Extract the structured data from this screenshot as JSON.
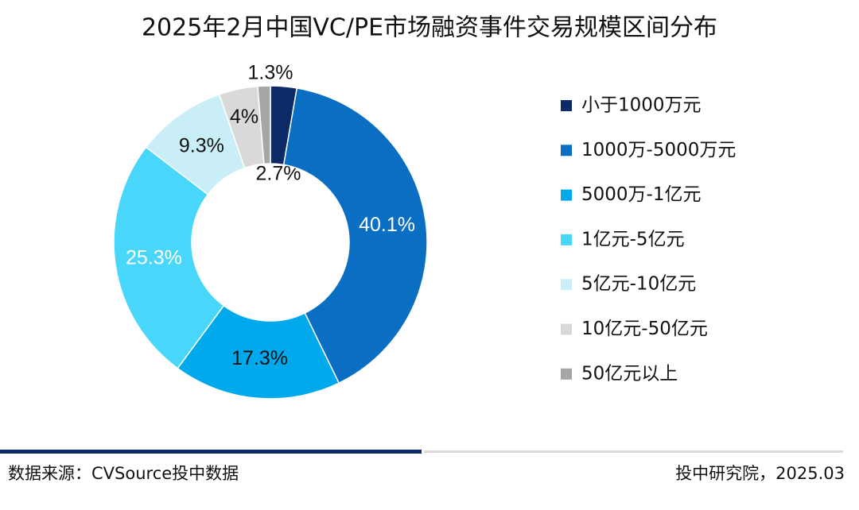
{
  "chart_data": {
    "type": "donut",
    "title": "2025年2月中国VC/PE市场融资事件交易规模区间分布",
    "categories": [
      "小于1000万元",
      "1000万-5000万元",
      "5000万-1亿元",
      "1亿元-5亿元",
      "5亿元-10亿元",
      "10亿元-50亿元",
      "50亿元以上"
    ],
    "values": [
      2.7,
      40.1,
      17.3,
      25.3,
      9.3,
      4,
      1.3
    ],
    "value_labels": [
      "2.7%",
      "40.1%",
      "17.3%",
      "25.3%",
      "9.3%",
      "4%",
      "1.3%"
    ],
    "colors": [
      "#0b2a66",
      "#0a6fc2",
      "#00a9ec",
      "#48d7fb",
      "#c9eef7",
      "#d9d9d9",
      "#a6a6a6"
    ],
    "legend": "right"
  },
  "footer": {
    "source": "数据来源：CVSource投中数据",
    "credit": "投中研究院，2025.03"
  }
}
